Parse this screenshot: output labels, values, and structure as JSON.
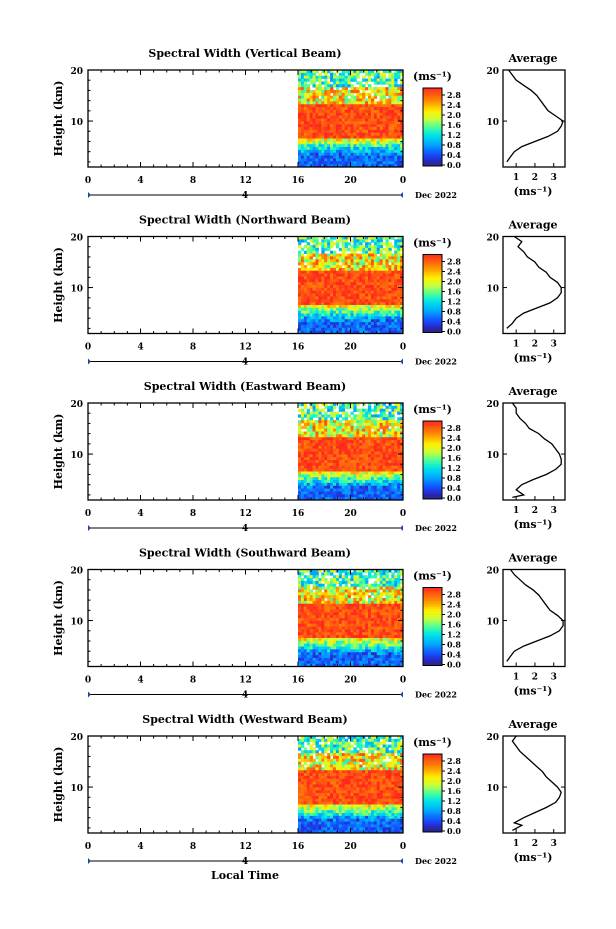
{
  "footer": {
    "xlabel": "Local Time"
  },
  "chart_data": [
    {
      "type": "heatmap",
      "title": "Spectral Width (Vertical Beam)",
      "ylabel": "Height (km)",
      "xticks": [
        "0",
        "4",
        "8",
        "12",
        "16",
        "20",
        "0"
      ],
      "date_marker": "4",
      "date_label": "Dec 2022",
      "ylim": [
        1,
        20
      ],
      "yticks": [
        "20",
        "10"
      ],
      "data_start_hour": 16,
      "colorbar": {
        "unit": "(ms⁻¹)",
        "ticks": [
          "2.8",
          "2.4",
          "2.0",
          "1.6",
          "1.2",
          "0.8",
          "0.4",
          "0.0"
        ]
      },
      "profile": {
        "title": "Average",
        "xlabel": "(ms⁻¹)",
        "xticks": [
          "1",
          "2",
          "3"
        ],
        "xlim": [
          0.3,
          3.6
        ],
        "points": [
          [
            0.5,
            2
          ],
          [
            0.7,
            3
          ],
          [
            0.9,
            4
          ],
          [
            1.3,
            5
          ],
          [
            2.0,
            6
          ],
          [
            2.7,
            7
          ],
          [
            3.2,
            8
          ],
          [
            3.4,
            9
          ],
          [
            3.5,
            10
          ],
          [
            3.1,
            11
          ],
          [
            2.7,
            12
          ],
          [
            2.5,
            13
          ],
          [
            2.3,
            14
          ],
          [
            2.1,
            15
          ],
          [
            1.8,
            16
          ],
          [
            1.4,
            17
          ],
          [
            1.0,
            18
          ],
          [
            0.8,
            19
          ],
          [
            0.6,
            20
          ]
        ]
      }
    },
    {
      "type": "heatmap",
      "title": "Spectral Width (Northward Beam)",
      "ylabel": "Height (km)",
      "xticks": [
        "0",
        "4",
        "8",
        "12",
        "16",
        "20",
        "0"
      ],
      "date_marker": "4",
      "date_label": "Dec 2022",
      "ylim": [
        1,
        20
      ],
      "yticks": [
        "20",
        "10"
      ],
      "data_start_hour": 16,
      "colorbar": {
        "unit": "(ms⁻¹)",
        "ticks": [
          "2.8",
          "2.4",
          "2.0",
          "1.6",
          "1.2",
          "0.8",
          "0.4",
          "0.0"
        ]
      },
      "profile": {
        "title": "Average",
        "xlabel": "(ms⁻¹)",
        "xticks": [
          "1",
          "2",
          "3"
        ],
        "xlim": [
          0.3,
          3.6
        ],
        "points": [
          [
            0.5,
            2
          ],
          [
            0.8,
            3
          ],
          [
            1.0,
            4
          ],
          [
            1.4,
            5
          ],
          [
            2.1,
            6
          ],
          [
            2.8,
            7
          ],
          [
            3.2,
            8
          ],
          [
            3.4,
            9
          ],
          [
            3.4,
            10
          ],
          [
            3.2,
            11
          ],
          [
            2.8,
            12
          ],
          [
            2.6,
            13
          ],
          [
            2.2,
            14
          ],
          [
            2.0,
            15
          ],
          [
            1.6,
            16
          ],
          [
            1.4,
            17
          ],
          [
            1.1,
            18
          ],
          [
            1.3,
            19
          ],
          [
            0.9,
            20
          ]
        ]
      }
    },
    {
      "type": "heatmap",
      "title": "Spectral Width (Eastward Beam)",
      "ylabel": "Height (km)",
      "xticks": [
        "0",
        "4",
        "8",
        "12",
        "16",
        "20",
        "0"
      ],
      "date_marker": "4",
      "date_label": "Dec 2022",
      "ylim": [
        1,
        20
      ],
      "yticks": [
        "20",
        "10"
      ],
      "data_start_hour": 16,
      "colorbar": {
        "unit": "(ms⁻¹)",
        "ticks": [
          "2.8",
          "2.4",
          "2.0",
          "1.6",
          "1.2",
          "0.8",
          "0.4",
          "0.0"
        ]
      },
      "profile": {
        "title": "Average",
        "xlabel": "(ms⁻¹)",
        "xticks": [
          "1",
          "2",
          "3"
        ],
        "xlim": [
          0.3,
          3.6
        ],
        "points": [
          [
            0.8,
            1.5
          ],
          [
            1.4,
            2
          ],
          [
            1.0,
            3
          ],
          [
            1.3,
            4
          ],
          [
            1.9,
            5
          ],
          [
            2.6,
            6
          ],
          [
            3.1,
            7
          ],
          [
            3.4,
            8
          ],
          [
            3.4,
            9
          ],
          [
            3.3,
            10
          ],
          [
            3.1,
            11
          ],
          [
            2.9,
            12
          ],
          [
            2.5,
            13
          ],
          [
            2.2,
            14
          ],
          [
            1.7,
            15
          ],
          [
            1.5,
            16
          ],
          [
            1.2,
            17
          ],
          [
            1.0,
            18
          ],
          [
            1.0,
            19
          ],
          [
            0.8,
            20
          ]
        ]
      }
    },
    {
      "type": "heatmap",
      "title": "Spectral Width (Southward Beam)",
      "ylabel": "Height (km)",
      "xticks": [
        "0",
        "4",
        "8",
        "12",
        "16",
        "20",
        "0"
      ],
      "date_marker": "4",
      "date_label": "Dec 2022",
      "ylim": [
        1,
        20
      ],
      "yticks": [
        "20",
        "10"
      ],
      "data_start_hour": 16,
      "colorbar": {
        "unit": "(ms⁻¹)",
        "ticks": [
          "2.8",
          "2.4",
          "2.0",
          "1.6",
          "1.2",
          "0.8",
          "0.4",
          "0.0"
        ]
      },
      "profile": {
        "title": "Average",
        "xlabel": "(ms⁻¹)",
        "xticks": [
          "1",
          "2",
          "3"
        ],
        "xlim": [
          0.3,
          3.6
        ],
        "points": [
          [
            0.5,
            2
          ],
          [
            0.7,
            3
          ],
          [
            0.9,
            4
          ],
          [
            1.4,
            5
          ],
          [
            2.1,
            6
          ],
          [
            2.8,
            7
          ],
          [
            3.3,
            8
          ],
          [
            3.5,
            9
          ],
          [
            3.5,
            10
          ],
          [
            3.2,
            11
          ],
          [
            2.8,
            12
          ],
          [
            2.6,
            13
          ],
          [
            2.4,
            14
          ],
          [
            2.2,
            15
          ],
          [
            1.9,
            16
          ],
          [
            1.5,
            17
          ],
          [
            1.2,
            18
          ],
          [
            0.9,
            19
          ],
          [
            0.7,
            20
          ]
        ]
      }
    },
    {
      "type": "heatmap",
      "title": "Spectral Width (Westward Beam)",
      "ylabel": "Height (km)",
      "xticks": [
        "0",
        "4",
        "8",
        "12",
        "16",
        "20",
        "0"
      ],
      "date_marker": "4",
      "date_label": "Dec 2022",
      "ylim": [
        1,
        20
      ],
      "yticks": [
        "20",
        "10"
      ],
      "data_start_hour": 16,
      "colorbar": {
        "unit": "(ms⁻¹)",
        "ticks": [
          "2.8",
          "2.4",
          "2.0",
          "1.6",
          "1.2",
          "0.8",
          "0.4",
          "0.0"
        ]
      },
      "profile": {
        "title": "Average",
        "xlabel": "(ms⁻¹)",
        "xticks": [
          "1",
          "2",
          "3"
        ],
        "xlim": [
          0.3,
          3.6
        ],
        "points": [
          [
            0.8,
            1.5
          ],
          [
            1.3,
            2.5
          ],
          [
            0.9,
            3
          ],
          [
            1.4,
            4
          ],
          [
            2.0,
            5
          ],
          [
            2.6,
            6
          ],
          [
            3.1,
            7
          ],
          [
            3.3,
            8
          ],
          [
            3.4,
            9
          ],
          [
            3.2,
            10
          ],
          [
            2.9,
            11
          ],
          [
            2.6,
            12
          ],
          [
            2.4,
            13
          ],
          [
            2.1,
            14
          ],
          [
            1.8,
            15
          ],
          [
            1.5,
            16
          ],
          [
            1.2,
            17
          ],
          [
            1.0,
            18
          ],
          [
            0.8,
            19
          ],
          [
            1.0,
            20
          ]
        ]
      }
    }
  ]
}
